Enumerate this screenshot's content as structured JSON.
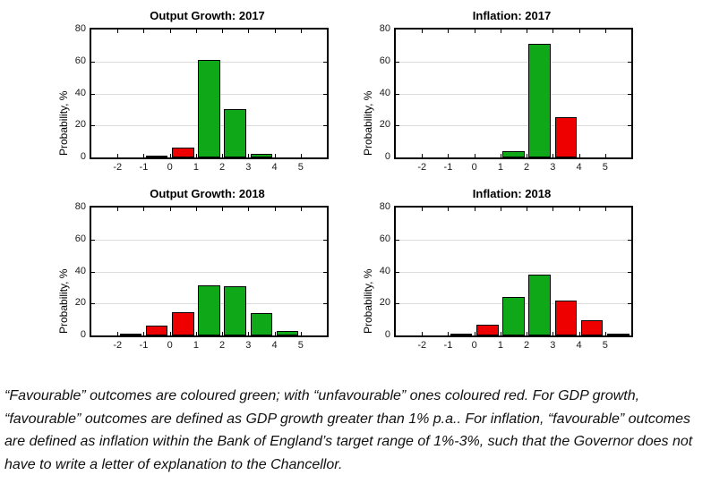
{
  "figure": {
    "background": "#ffffff"
  },
  "colors": {
    "favourable_green": "#0fa818",
    "unfavourable_red": "#ee0000",
    "gridline": "#dcdcdc",
    "axis": "#000000"
  },
  "chart_data": [
    {
      "type": "bar",
      "title": "Output Growth: 2017",
      "xlabel": "",
      "ylabel": "Probability, %",
      "ylim": [
        0,
        80
      ],
      "yticks": [
        0,
        20,
        40,
        60,
        80
      ],
      "xlim": [
        -3,
        6
      ],
      "xticks": [
        -2,
        -1,
        0,
        1,
        2,
        3,
        4,
        5
      ],
      "grid": "horizontal",
      "legend": "none",
      "bars": [
        {
          "x_bin": [
            -1,
            0
          ],
          "value": 0.5,
          "color": "red"
        },
        {
          "x_bin": [
            0,
            1
          ],
          "value": 6,
          "color": "red"
        },
        {
          "x_bin": [
            1,
            2
          ],
          "value": 61,
          "color": "green"
        },
        {
          "x_bin": [
            2,
            3
          ],
          "value": 30,
          "color": "green"
        },
        {
          "x_bin": [
            3,
            4
          ],
          "value": 2,
          "color": "green"
        }
      ]
    },
    {
      "type": "bar",
      "title": "Inflation: 2017",
      "xlabel": "",
      "ylabel": "Probability, %",
      "ylim": [
        0,
        80
      ],
      "yticks": [
        0,
        20,
        40,
        60,
        80
      ],
      "xlim": [
        -3,
        6
      ],
      "xticks": [
        -2,
        -1,
        0,
        1,
        2,
        3,
        4,
        5
      ],
      "grid": "horizontal",
      "legend": "none",
      "bars": [
        {
          "x_bin": [
            1,
            2
          ],
          "value": 4,
          "color": "green"
        },
        {
          "x_bin": [
            2,
            3
          ],
          "value": 71,
          "color": "green"
        },
        {
          "x_bin": [
            3,
            4
          ],
          "value": 25,
          "color": "red"
        }
      ]
    },
    {
      "type": "bar",
      "title": "Output Growth: 2018",
      "xlabel": "",
      "ylabel": "Probability, %",
      "ylim": [
        0,
        80
      ],
      "yticks": [
        0,
        20,
        40,
        60,
        80
      ],
      "xlim": [
        -3,
        6
      ],
      "xticks": [
        -2,
        -1,
        0,
        1,
        2,
        3,
        4,
        5
      ],
      "grid": "horizontal",
      "legend": "none",
      "bars": [
        {
          "x_bin": [
            -2,
            -1
          ],
          "value": 1,
          "color": "red"
        },
        {
          "x_bin": [
            -1,
            0
          ],
          "value": 6,
          "color": "red"
        },
        {
          "x_bin": [
            0,
            1
          ],
          "value": 14.5,
          "color": "red"
        },
        {
          "x_bin": [
            1,
            2
          ],
          "value": 31.5,
          "color": "green"
        },
        {
          "x_bin": [
            2,
            3
          ],
          "value": 31,
          "color": "green"
        },
        {
          "x_bin": [
            3,
            4
          ],
          "value": 14,
          "color": "green"
        },
        {
          "x_bin": [
            4,
            5
          ],
          "value": 3,
          "color": "green"
        }
      ]
    },
    {
      "type": "bar",
      "title": "Inflation: 2018",
      "xlabel": "",
      "ylabel": "Probability, %",
      "ylim": [
        0,
        80
      ],
      "yticks": [
        0,
        20,
        40,
        60,
        80
      ],
      "xlim": [
        -3,
        6
      ],
      "xticks": [
        -2,
        -1,
        0,
        1,
        2,
        3,
        4,
        5
      ],
      "grid": "horizontal",
      "legend": "none",
      "bars": [
        {
          "x_bin": [
            -1,
            0
          ],
          "value": 1,
          "color": "red"
        },
        {
          "x_bin": [
            0,
            1
          ],
          "value": 6.5,
          "color": "red"
        },
        {
          "x_bin": [
            1,
            2
          ],
          "value": 24,
          "color": "green"
        },
        {
          "x_bin": [
            2,
            3
          ],
          "value": 38,
          "color": "green"
        },
        {
          "x_bin": [
            3,
            4
          ],
          "value": 22,
          "color": "red"
        },
        {
          "x_bin": [
            4,
            5
          ],
          "value": 9.5,
          "color": "red"
        },
        {
          "x_bin": [
            5,
            6
          ],
          "value": 1,
          "color": "red"
        }
      ]
    }
  ],
  "caption": {
    "text": "“Favourable” outcomes are coloured green; with “unfavourable” ones coloured red. For GDP growth, “favourable” outcomes are defined as GDP growth greater than 1% p.a.. For inflation, “favourable” outcomes are defined as inflation within the Bank of England’s target range of 1%-3%, such that the Governor does not have to write a letter of explanation to the Chancellor."
  }
}
